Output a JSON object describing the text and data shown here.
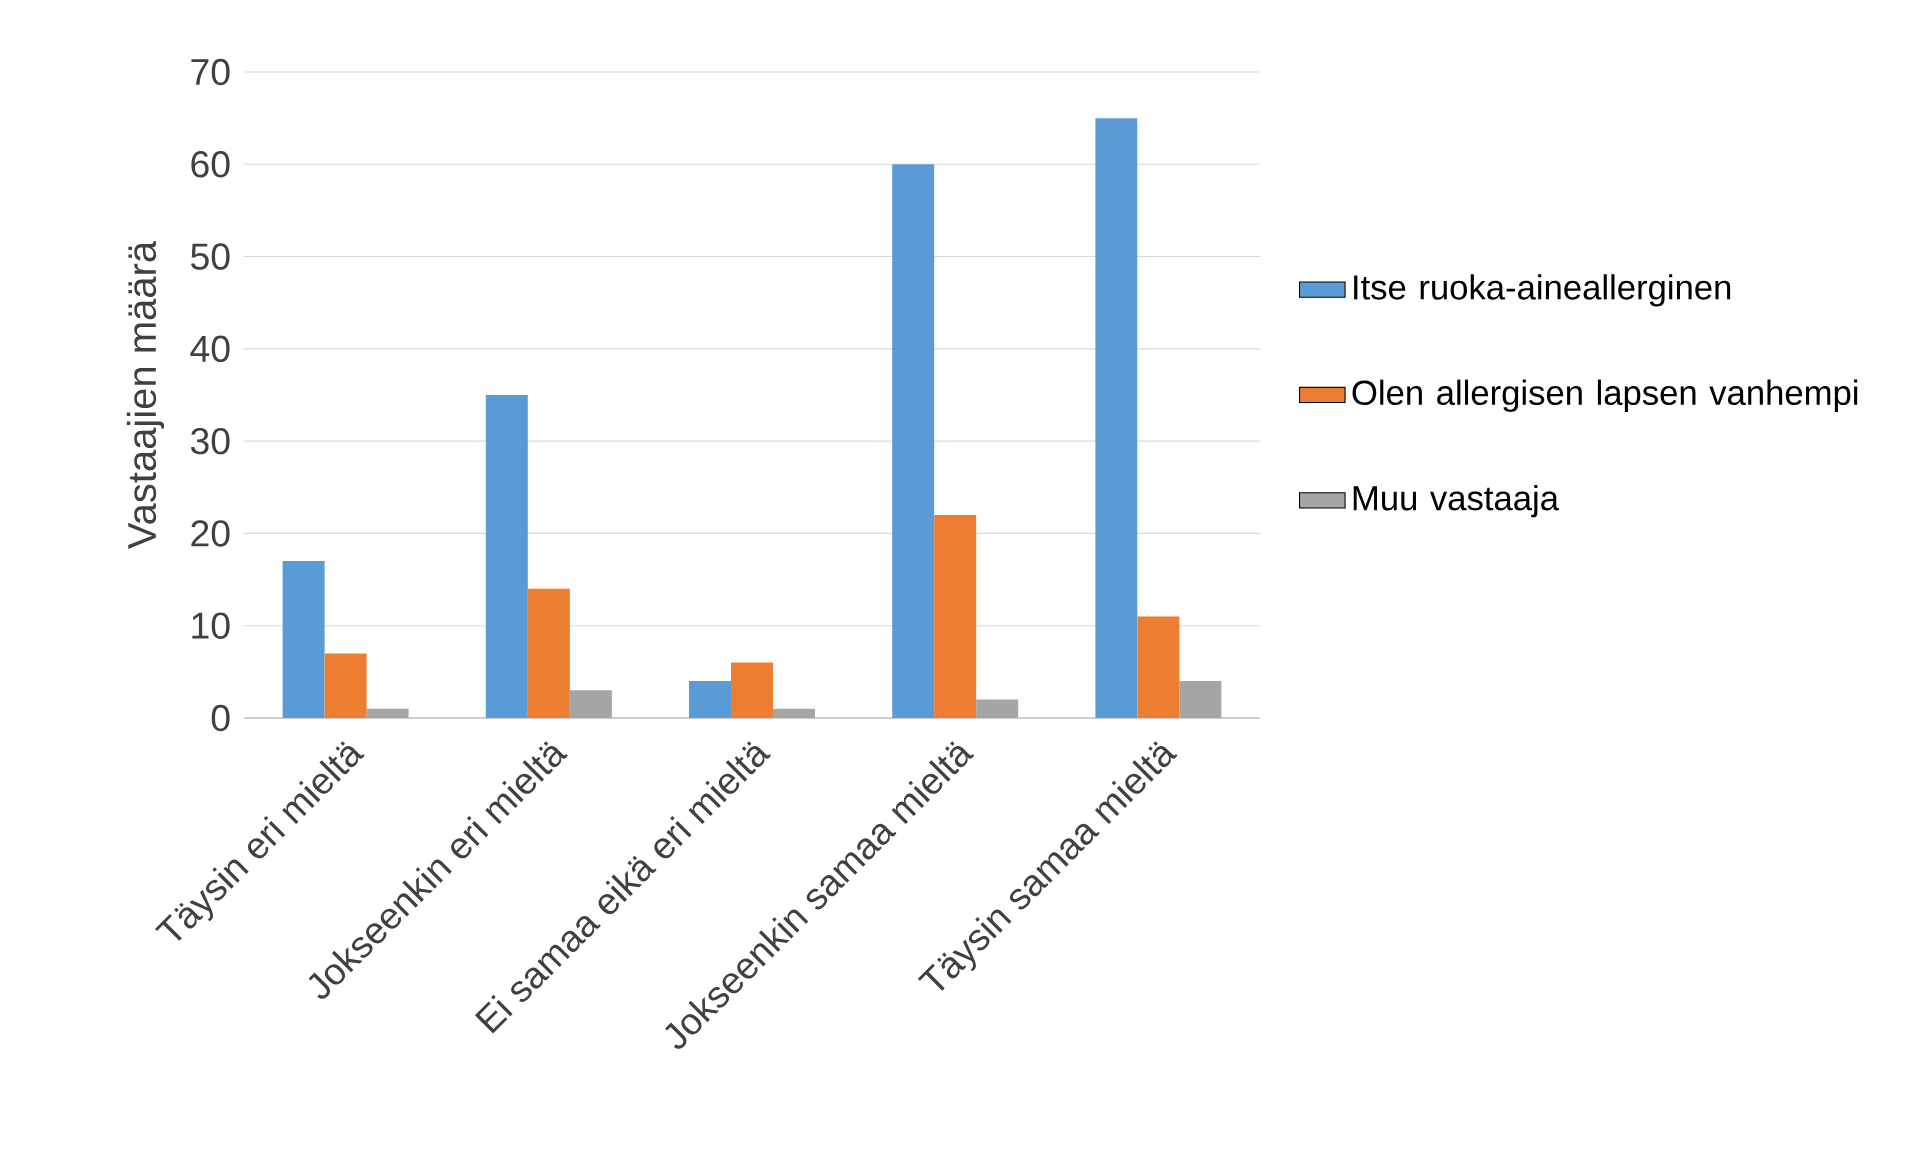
{
  "chart_data": {
    "type": "bar",
    "ylabel": "Vastaajien määrä",
    "categories": [
      "Täysin eri mieltä",
      "Jokseenkin eri mieltä",
      "Ei samaa eikä eri mieltä",
      "Jokseenkin samaa mieltä",
      "Täysin samaa mieltä"
    ],
    "series": [
      {
        "name": "Itse ruoka-aineallerginen",
        "color": "#5b9bd5",
        "values": [
          17,
          35,
          4,
          60,
          65
        ]
      },
      {
        "name": "Olen allergisen lapsen vanhempi",
        "color": "#ed7d31",
        "values": [
          7,
          14,
          6,
          22,
          11
        ]
      },
      {
        "name": "Muu vastaaja",
        "color": "#a5a5a5",
        "values": [
          1,
          3,
          1,
          2,
          4
        ]
      }
    ],
    "ylim": [
      0,
      70
    ],
    "yticks": [
      0,
      10,
      20,
      30,
      40,
      50,
      60,
      70
    ],
    "grid": "y",
    "legend": "right"
  }
}
